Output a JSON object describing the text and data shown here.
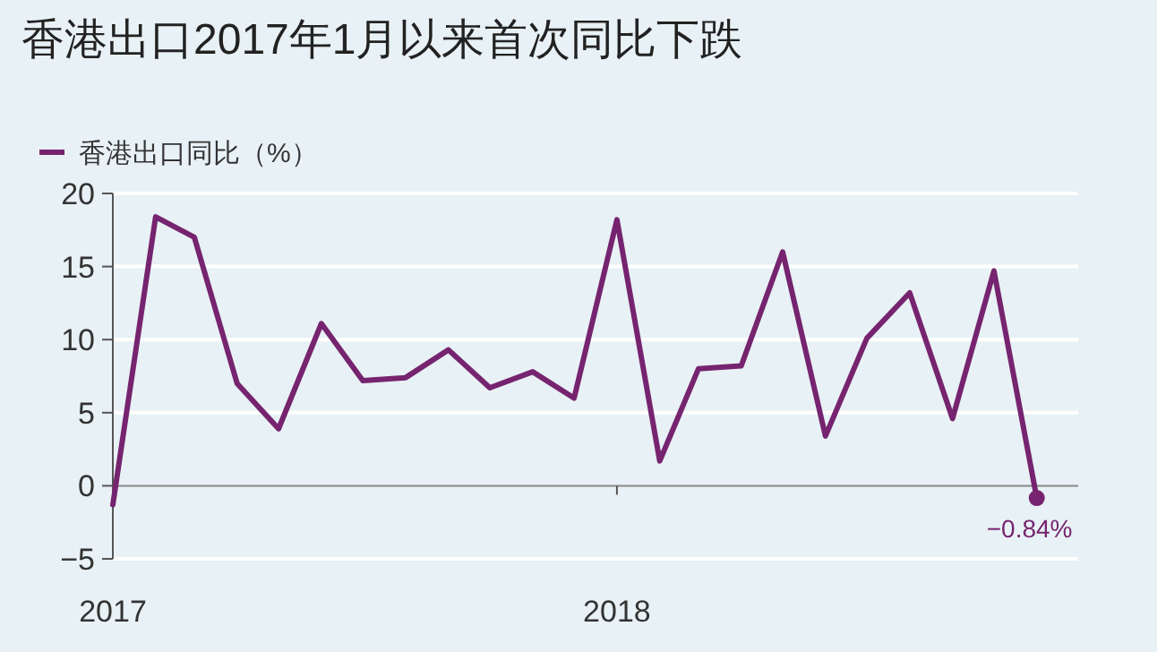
{
  "chart_data": {
    "type": "line",
    "title": "香港出口2017年1月以来首次同比下跌",
    "x": [
      "2017-01",
      "2017-02",
      "2017-03",
      "2017-04",
      "2017-05",
      "2017-06",
      "2017-07",
      "2017-08",
      "2017-09",
      "2017-10",
      "2017-11",
      "2017-12",
      "2018-01",
      "2018-02",
      "2018-03",
      "2018-04",
      "2018-05",
      "2018-06",
      "2018-07",
      "2018-08",
      "2018-09",
      "2018-10",
      "2018-11"
    ],
    "series": [
      {
        "name": "香港出口同比（%）",
        "color": "#76246f",
        "values": [
          -1.3,
          18.4,
          17.0,
          7.0,
          3.9,
          11.1,
          7.2,
          7.4,
          9.3,
          6.7,
          7.8,
          6.0,
          18.2,
          1.7,
          8.0,
          8.2,
          16.0,
          3.4,
          10.1,
          13.2,
          4.6,
          14.7,
          -0.84
        ]
      }
    ],
    "xlim": [
      "2017-01",
      "2018-12"
    ],
    "xticks": [
      {
        "value": "2017-01",
        "label": "2017"
      },
      {
        "value": "2018-01",
        "label": "2018"
      }
    ],
    "ylim": [
      -5,
      20
    ],
    "yticks": [
      -5,
      0,
      5,
      10,
      15,
      20
    ],
    "grid": "y",
    "legend": "top left",
    "marker": "none",
    "line_style": "solid",
    "annotations": [
      {
        "text": "−0.84%",
        "x": "2018-11",
        "y": -0.84
      }
    ]
  }
}
